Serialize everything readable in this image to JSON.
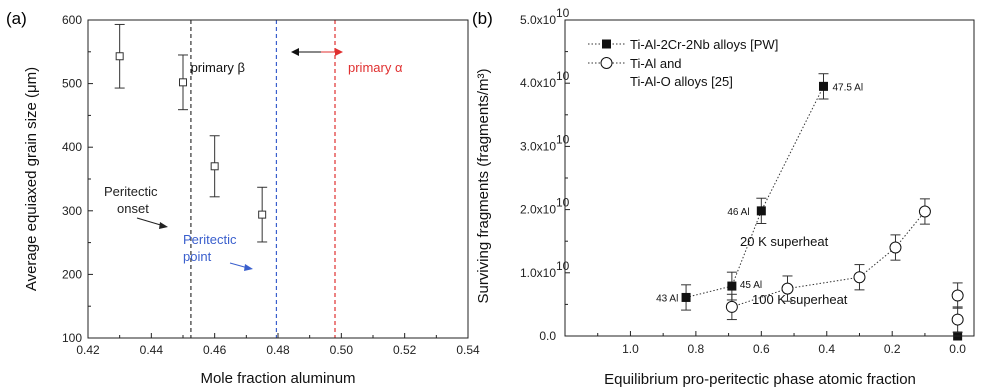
{
  "chart_data": [
    {
      "type": "scatter",
      "panel_label": "(a)",
      "xlabel": "Mole fraction aluminum",
      "ylabel": "Average equiaxed grain size (μm)",
      "xlim": [
        0.42,
        0.54
      ],
      "ylim": [
        100,
        600
      ],
      "xticks": [
        "0.42",
        "0.44",
        "0.46",
        "0.48",
        "0.50",
        "0.52",
        "0.54"
      ],
      "yticks": [
        "100",
        "200",
        "300",
        "400",
        "500",
        "600"
      ],
      "x_tick_values": [
        0.42,
        0.44,
        0.46,
        0.48,
        0.5,
        0.52,
        0.54
      ],
      "y_tick_values": [
        100,
        200,
        300,
        400,
        500,
        600
      ],
      "points": [
        {
          "x": 0.43,
          "y": 543,
          "err": 50
        },
        {
          "x": 0.45,
          "y": 502,
          "err": 43
        },
        {
          "x": 0.46,
          "y": 370,
          "err": 48
        },
        {
          "x": 0.475,
          "y": 294,
          "err": 43
        }
      ],
      "vlines": [
        {
          "x": 0.4525,
          "color": "#333333"
        },
        {
          "x": 0.4795,
          "color": "#3a5fcd"
        },
        {
          "x": 0.498,
          "color": "#e03030"
        }
      ],
      "annotations": {
        "peritectic_onset": [
          "Peritectic",
          "onset"
        ],
        "peritectic_point": [
          "Peritectic",
          "point"
        ],
        "primary_beta": "primary β",
        "primary_alpha": "primary α"
      },
      "colors": {
        "onset": "#222222",
        "point": "#3a5fcd",
        "alpha": "#e03030"
      }
    },
    {
      "type": "line",
      "panel_label": "(b)",
      "xlabel": "Equilibrium pro-peritectic phase atomic fraction",
      "ylabel": "Surviving fragments (fragments/m³)",
      "xlim": [
        1.2,
        -0.05
      ],
      "ylim": [
        0,
        50000000000.0
      ],
      "xticks": [
        "1.0",
        "0.8",
        "0.6",
        "0.4",
        "0.2",
        "0.0"
      ],
      "x_tick_values": [
        1.0,
        0.8,
        0.6,
        0.4,
        0.2,
        0.0
      ],
      "yticks": [
        "0.0",
        "1.0x10",
        "2.0x10",
        "3.0x10",
        "4.0x10",
        "5.0x10"
      ],
      "ytick_exponent": "10",
      "y_tick_values": [
        0,
        10000000000.0,
        20000000000.0,
        30000000000.0,
        40000000000.0,
        50000000000.0
      ],
      "grid": false,
      "legend_position": "top-left",
      "series": [
        {
          "name": "Ti-Al-2Cr-2Nb alloys [PW]",
          "marker": "filled-square",
          "points": [
            {
              "x": 0.83,
              "y": 6100000000.0,
              "err": 2000000000.0
            },
            {
              "x": 0.69,
              "y": 7900000000.0,
              "err": 2200000000.0
            },
            {
              "x": 0.6,
              "y": 19800000000.0,
              "err": 2000000000.0
            },
            {
              "x": 0.41,
              "y": 39500000000.0,
              "err": 2000000000.0
            }
          ],
          "point_labels": [
            "43 Al",
            "45 Al",
            "46 Al",
            "47.5 Al"
          ],
          "extra_points": [
            {
              "x": 0.0,
              "y": 0.0
            }
          ]
        },
        {
          "name": "Ti-Al and Ti-Al-O alloys [25]",
          "name_lines": [
            "Ti-Al and",
            "Ti-Al-O alloys [25]"
          ],
          "marker": "open-circle",
          "points": [
            {
              "x": 0.69,
              "y": 4600000000.0,
              "err": 2000000000.0
            },
            {
              "x": 0.52,
              "y": 7500000000.0,
              "err": 2000000000.0
            },
            {
              "x": 0.3,
              "y": 9300000000.0,
              "err": 2000000000.0
            },
            {
              "x": 0.19,
              "y": 14000000000.0,
              "err": 2000000000.0
            },
            {
              "x": 0.1,
              "y": 19700000000.0,
              "err": 2000000000.0
            }
          ],
          "extra_points": [
            {
              "x": 0.0,
              "y": 6400000000.0,
              "err": 2000000000.0
            },
            {
              "x": 0.0,
              "y": 2600000000.0,
              "err": 2000000000.0
            }
          ]
        }
      ],
      "annotations": {
        "superheat_20": "20 K superheat",
        "superheat_100": "100 K superheat"
      }
    }
  ]
}
